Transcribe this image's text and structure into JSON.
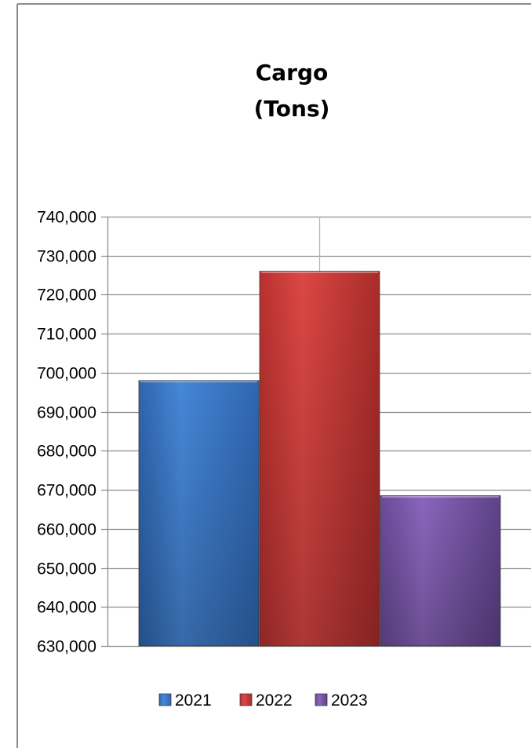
{
  "chart_data": {
    "type": "bar",
    "title": "Cargo",
    "subtitle": "(Tons)",
    "xlabel": "",
    "ylabel": "",
    "ylim": [
      630000,
      740000
    ],
    "ytick_step": 10000,
    "grid": true,
    "legend": "bottom",
    "series": [
      {
        "name": "2021",
        "value": 698000,
        "color": "#3a78c9"
      },
      {
        "name": "2022",
        "value": 726000,
        "color": "#cc3d3a"
      },
      {
        "name": "2023",
        "value": 668500,
        "color": "#7a56a8"
      }
    ]
  }
}
